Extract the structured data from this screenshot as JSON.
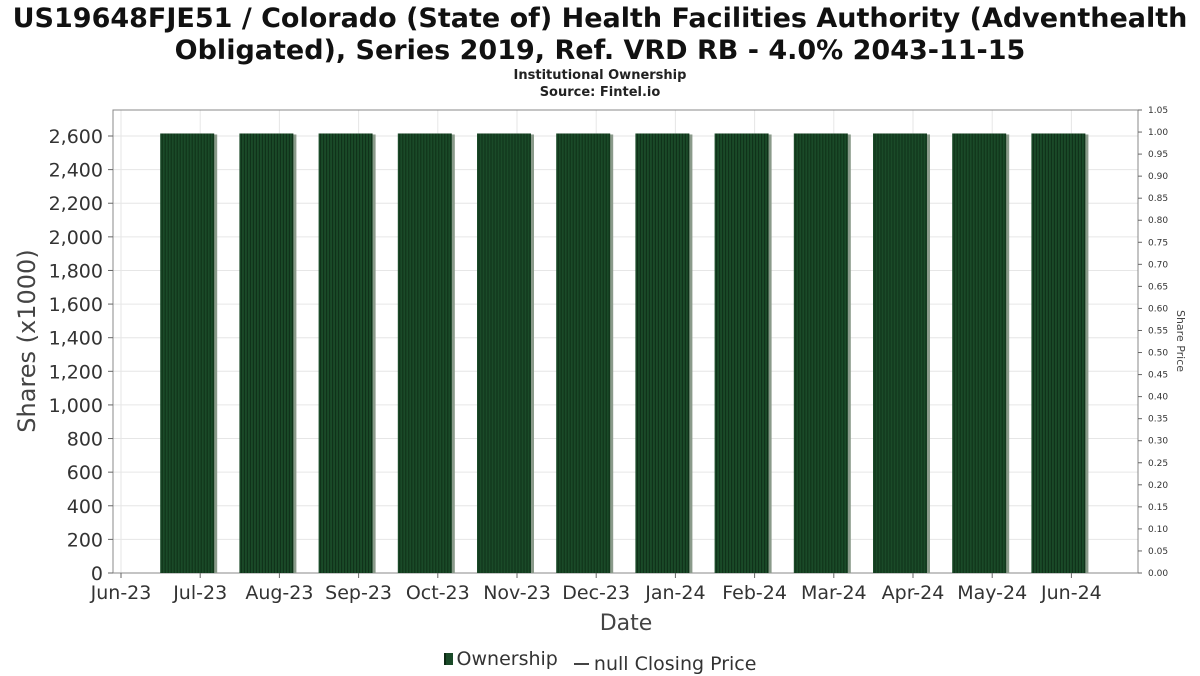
{
  "header": {
    "title_line1": "US19648FJE51 / Colorado (State of) Health Facilities Authority (Adventhealth",
    "title_line2": "Obligated), Series 2019, Ref. VRD RB - 4.0% 2043-11-15",
    "subtitle_line1": "Institutional Ownership",
    "subtitle_line2": "Source: Fintel.io"
  },
  "legend": {
    "ownership_label": "Ownership",
    "price_label": "null Closing Price"
  },
  "colors": {
    "bar_fill": "#1a4a28",
    "bar_stripe": "#0f3018",
    "bar_shadow": "#8a9a8a",
    "grid": "#e6e6e6",
    "plot_border": "#888888"
  },
  "chart_data": {
    "type": "bar",
    "xlabel": "Date",
    "ylabel": "Shares (x1000)",
    "y2label": "Share Price",
    "ylim": [
      0,
      2600
    ],
    "y2lim": [
      0,
      1.05
    ],
    "y_ticks": [
      "0",
      "200",
      "400",
      "600",
      "800",
      "1,000",
      "1,200",
      "1,400",
      "1,600",
      "1,800",
      "2,000",
      "2,200",
      "2,400",
      "2,600"
    ],
    "y_tick_values": [
      0,
      200,
      400,
      600,
      800,
      1000,
      1200,
      1400,
      1600,
      1800,
      2000,
      2200,
      2400,
      2600
    ],
    "y2_ticks": [
      "0.00",
      "0.05",
      "0.10",
      "0.15",
      "0.20",
      "0.25",
      "0.30",
      "0.35",
      "0.40",
      "0.45",
      "0.50",
      "0.55",
      "0.60",
      "0.65",
      "0.70",
      "0.75",
      "0.80",
      "0.85",
      "0.90",
      "0.95",
      "1.00",
      "1.05"
    ],
    "x_ticks": [
      "Jun-23",
      "Jul-23",
      "Aug-23",
      "Sep-23",
      "Oct-23",
      "Nov-23",
      "Dec-23",
      "Jan-24",
      "Feb-24",
      "Mar-24",
      "Apr-24",
      "May-24",
      "Jun-24"
    ],
    "grid": true,
    "legend_position": "bottom-center",
    "series": [
      {
        "name": "Ownership",
        "type": "bar",
        "x": [
          "2023-07",
          "2023-08",
          "2023-09",
          "2023-10",
          "2023-11",
          "2023-12",
          "2024-01",
          "2024-02",
          "2024-03",
          "2024-04",
          "2024-05",
          "2024-06"
        ],
        "values": [
          2615,
          2615,
          2615,
          2615,
          2615,
          2615,
          2615,
          2615,
          2615,
          2615,
          2615,
          2615
        ]
      },
      {
        "name": "null Closing Price",
        "type": "line",
        "values": []
      }
    ]
  }
}
